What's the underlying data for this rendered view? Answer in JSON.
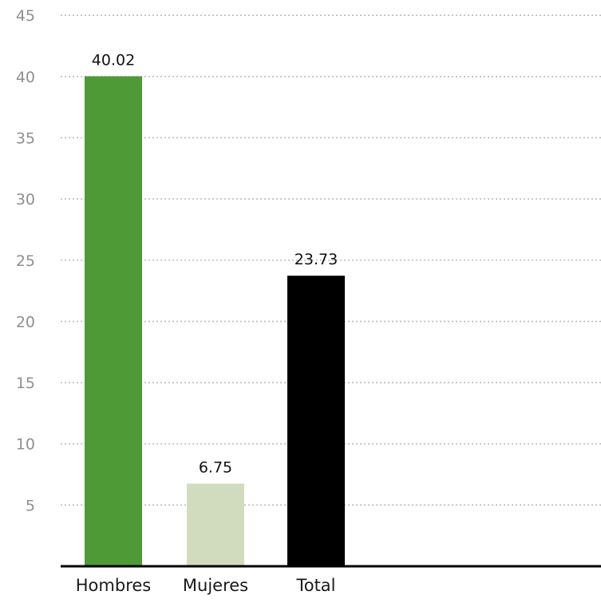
{
  "chart_data": {
    "type": "bar",
    "categories": [
      "Hombres",
      "Mujeres",
      "Total"
    ],
    "values": [
      40.02,
      6.75,
      23.73
    ],
    "value_labels": [
      "40.02",
      "6.75",
      "23.73"
    ],
    "colors": [
      "#4e9a37",
      "#d1dcbf",
      "#000000"
    ],
    "ylim": [
      0,
      45
    ],
    "yticks": [
      5,
      10,
      15,
      20,
      25,
      30,
      35,
      40,
      45
    ],
    "grid": true,
    "grid_style": "dotted",
    "legend": "none"
  }
}
